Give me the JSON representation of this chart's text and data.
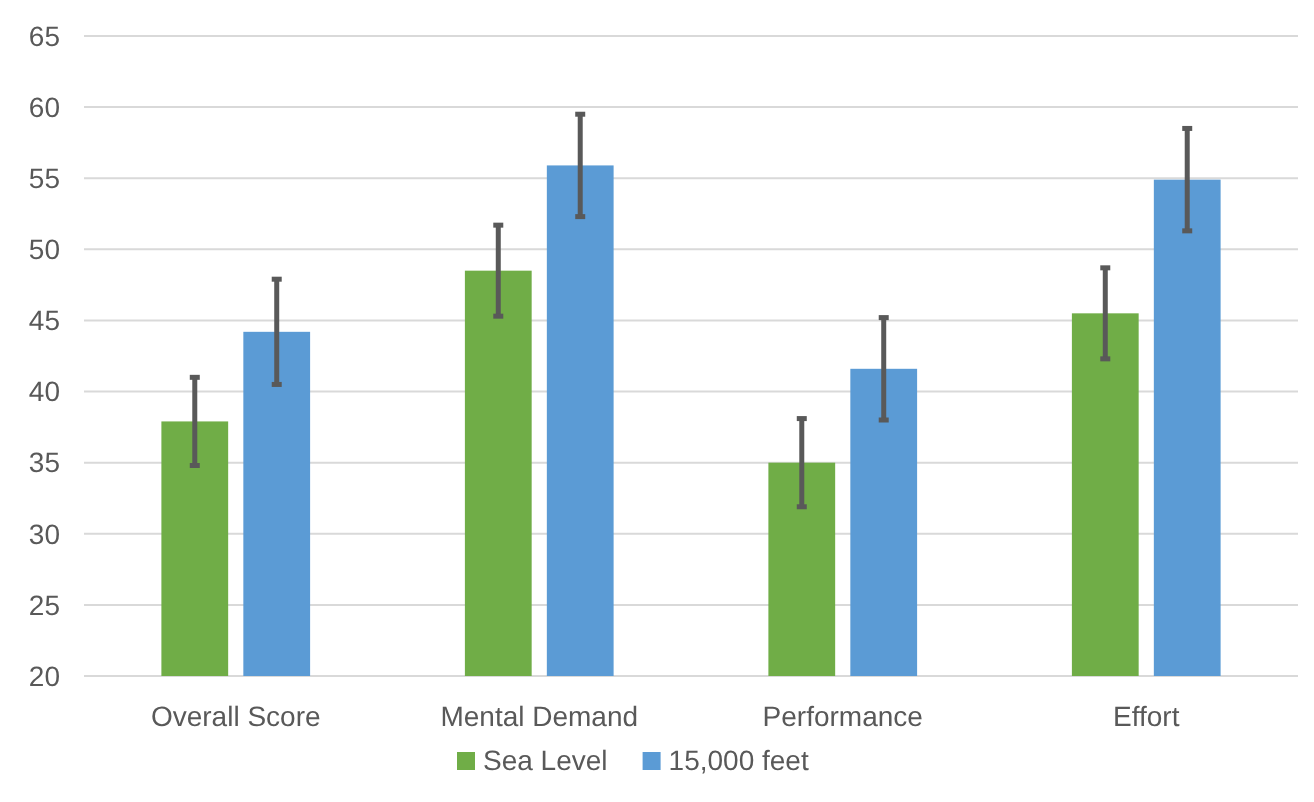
{
  "chart_data": {
    "type": "bar",
    "categories": [
      "Overall Score",
      "Mental Demand",
      "Performance",
      "Effort"
    ],
    "series": [
      {
        "name": "Sea Level",
        "color": "#70ad47",
        "values": [
          37.9,
          48.5,
          35.0,
          45.5
        ],
        "errors": [
          3.1,
          3.2,
          3.1,
          3.2
        ]
      },
      {
        "name": "15,000 feet",
        "color": "#5b9bd5",
        "values": [
          44.2,
          55.9,
          41.6,
          54.9
        ],
        "errors": [
          3.7,
          3.6,
          3.6,
          3.6
        ]
      }
    ],
    "ylim": [
      20,
      65
    ],
    "yticks": [
      20,
      25,
      30,
      35,
      40,
      45,
      50,
      55,
      60,
      65
    ],
    "grid": "y",
    "legend": "bottom"
  }
}
